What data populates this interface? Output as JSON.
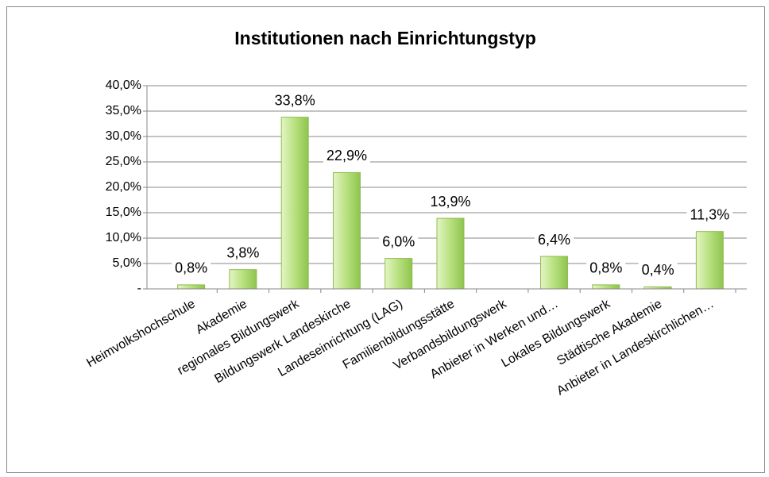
{
  "chart_data": {
    "type": "bar",
    "title": "Institutionen nach Einrichtungstyp",
    "categories": [
      "Heimvolkshochschule",
      "Akademie",
      "regionales Bildungswerk",
      "Bildungswerk Landeskirche",
      "Landeseinrichtung (LAG)",
      "Familienbildungsstätte",
      "Verbandsbildungswerk",
      "Anbieter in Werken und…",
      "Lokales Bildungswerk",
      "Städtische Akademie",
      "Anbieter in Landeskirchlichen…"
    ],
    "values": [
      0.8,
      3.8,
      33.8,
      22.9,
      6.0,
      13.9,
      null,
      6.4,
      0.8,
      0.4,
      11.3
    ],
    "value_labels": [
      "0,8%",
      "3,8%",
      "33,8%",
      "22,9%",
      "6,0%",
      "13,9%",
      null,
      "6,4%",
      "0,8%",
      "0,4%",
      "11,3%"
    ],
    "color": "#a8d86a",
    "ylim": [
      0,
      40
    ],
    "yticks": [
      {
        "value": 0,
        "label": "-"
      },
      {
        "value": 5,
        "label": "5,0%"
      },
      {
        "value": 10,
        "label": "10,0%"
      },
      {
        "value": 15,
        "label": "15,0%"
      },
      {
        "value": 20,
        "label": "20,0%"
      },
      {
        "value": 25,
        "label": "25,0%"
      },
      {
        "value": 30,
        "label": "30,0%"
      },
      {
        "value": 35,
        "label": "35,0%"
      },
      {
        "value": 40,
        "label": "40,0%"
      }
    ],
    "grid": true
  }
}
